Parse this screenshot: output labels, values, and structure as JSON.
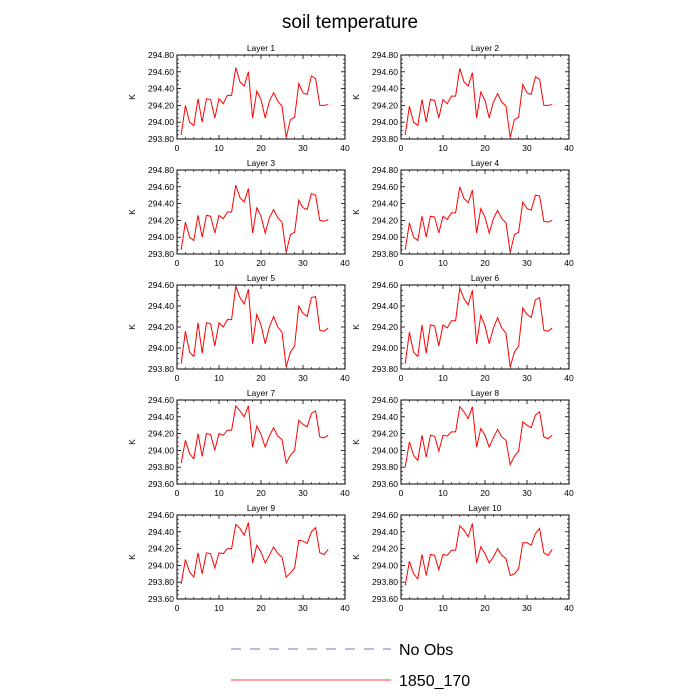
{
  "title": "soil temperature",
  "chart_data": [
    {
      "type": "line",
      "title": "Layer 1",
      "ylabel": "K",
      "xlim": [
        0,
        40
      ],
      "xticks": [
        0,
        10,
        20,
        30,
        40
      ],
      "ylim": [
        293.8,
        294.8
      ],
      "yticks": [
        293.8,
        294.0,
        294.2,
        294.4,
        294.6,
        294.8
      ],
      "ytick_labels": [
        "293.80",
        "294.00",
        "294.20",
        "294.40",
        "294.60",
        "294.80"
      ],
      "x": [
        1,
        2,
        3,
        4,
        5,
        6,
        7,
        8,
        9,
        10,
        11,
        12,
        13,
        14,
        15,
        16,
        17,
        18,
        19,
        20,
        21,
        22,
        23,
        24,
        25,
        26,
        27,
        28,
        29,
        30,
        31,
        32,
        33,
        34,
        35,
        36
      ],
      "series": [
        {
          "name": "1850_170",
          "values": [
            293.85,
            294.2,
            294.0,
            293.96,
            294.28,
            294.0,
            294.28,
            294.27,
            294.05,
            294.28,
            294.22,
            294.32,
            294.32,
            294.65,
            294.48,
            294.43,
            294.6,
            294.05,
            294.37,
            294.27,
            294.05,
            294.25,
            294.35,
            294.25,
            294.19,
            293.82,
            294.03,
            294.06,
            294.46,
            294.35,
            294.33,
            294.55,
            294.52,
            294.2,
            294.2,
            294.21
          ]
        }
      ]
    },
    {
      "type": "line",
      "title": "Layer 2",
      "ylabel": "K",
      "xlim": [
        0,
        40
      ],
      "xticks": [
        0,
        10,
        20,
        30,
        40
      ],
      "ylim": [
        293.8,
        294.8
      ],
      "yticks": [
        293.8,
        294.0,
        294.2,
        294.4,
        294.6,
        294.8
      ],
      "ytick_labels": [
        "293.80",
        "294.00",
        "294.20",
        "294.40",
        "294.60",
        "294.80"
      ],
      "x": [
        1,
        2,
        3,
        4,
        5,
        6,
        7,
        8,
        9,
        10,
        11,
        12,
        13,
        14,
        15,
        16,
        17,
        18,
        19,
        20,
        21,
        22,
        23,
        24,
        25,
        26,
        27,
        28,
        29,
        30,
        31,
        32,
        33,
        34,
        35,
        36
      ],
      "series": [
        {
          "name": "1850_170",
          "values": [
            293.85,
            294.19,
            294.0,
            293.96,
            294.27,
            294.0,
            294.27,
            294.26,
            294.05,
            294.27,
            294.22,
            294.31,
            294.31,
            294.64,
            294.48,
            294.43,
            294.59,
            294.05,
            294.36,
            294.26,
            294.05,
            294.24,
            294.34,
            294.24,
            294.19,
            293.82,
            294.03,
            294.06,
            294.45,
            294.35,
            294.33,
            294.54,
            294.51,
            294.2,
            294.2,
            294.21
          ]
        }
      ]
    },
    {
      "type": "line",
      "title": "Layer 3",
      "ylabel": "K",
      "xlim": [
        0,
        40
      ],
      "xticks": [
        0,
        10,
        20,
        30,
        40
      ],
      "ylim": [
        293.8,
        294.8
      ],
      "yticks": [
        293.8,
        294.0,
        294.2,
        294.4,
        294.6,
        294.8
      ],
      "ytick_labels": [
        "293.80",
        "294.00",
        "294.20",
        "294.40",
        "294.60",
        "294.80"
      ],
      "x": [
        1,
        2,
        3,
        4,
        5,
        6,
        7,
        8,
        9,
        10,
        11,
        12,
        13,
        14,
        15,
        16,
        17,
        18,
        19,
        20,
        21,
        22,
        23,
        24,
        25,
        26,
        27,
        28,
        29,
        30,
        31,
        32,
        33,
        34,
        35,
        36
      ],
      "series": [
        {
          "name": "1850_170",
          "values": [
            293.85,
            294.18,
            294.0,
            293.96,
            294.26,
            294.0,
            294.26,
            294.25,
            294.05,
            294.26,
            294.22,
            294.3,
            294.3,
            294.62,
            294.47,
            294.42,
            294.58,
            294.05,
            294.35,
            294.25,
            294.05,
            294.23,
            294.33,
            294.23,
            294.18,
            293.82,
            294.03,
            294.06,
            294.44,
            294.35,
            294.33,
            294.52,
            294.5,
            294.2,
            294.19,
            294.21
          ]
        }
      ]
    },
    {
      "type": "line",
      "title": "Layer 4",
      "ylabel": "K",
      "xlim": [
        0,
        40
      ],
      "xticks": [
        0,
        10,
        20,
        30,
        40
      ],
      "ylim": [
        293.8,
        294.8
      ],
      "yticks": [
        293.8,
        294.0,
        294.2,
        294.4,
        294.6,
        294.8
      ],
      "ytick_labels": [
        "293.80",
        "294.00",
        "294.20",
        "294.40",
        "294.60",
        "294.80"
      ],
      "x": [
        1,
        2,
        3,
        4,
        5,
        6,
        7,
        8,
        9,
        10,
        11,
        12,
        13,
        14,
        15,
        16,
        17,
        18,
        19,
        20,
        21,
        22,
        23,
        24,
        25,
        26,
        27,
        28,
        29,
        30,
        31,
        32,
        33,
        34,
        35,
        36
      ],
      "series": [
        {
          "name": "1850_170",
          "values": [
            293.85,
            294.17,
            294.0,
            293.96,
            294.25,
            294.0,
            294.25,
            294.24,
            294.05,
            294.25,
            294.21,
            294.29,
            294.29,
            294.6,
            294.46,
            294.41,
            294.56,
            294.05,
            294.34,
            294.24,
            294.05,
            294.22,
            294.32,
            294.22,
            294.17,
            293.82,
            294.03,
            294.06,
            294.42,
            294.34,
            294.32,
            294.5,
            294.49,
            294.19,
            294.18,
            294.2
          ]
        }
      ]
    },
    {
      "type": "line",
      "title": "Layer 5",
      "ylabel": "K",
      "xlim": [
        0,
        40
      ],
      "xticks": [
        0,
        10,
        20,
        30,
        40
      ],
      "ylim": [
        293.8,
        294.6
      ],
      "yticks": [
        293.8,
        294.0,
        294.2,
        294.4,
        294.6
      ],
      "ytick_labels": [
        "293.80",
        "294.00",
        "294.20",
        "294.40",
        "294.60"
      ],
      "x": [
        1,
        2,
        3,
        4,
        5,
        6,
        7,
        8,
        9,
        10,
        11,
        12,
        13,
        14,
        15,
        16,
        17,
        18,
        19,
        20,
        21,
        22,
        23,
        24,
        25,
        26,
        27,
        28,
        29,
        30,
        31,
        32,
        33,
        34,
        35,
        36
      ],
      "series": [
        {
          "name": "1850_170",
          "values": [
            293.85,
            294.16,
            293.96,
            293.92,
            294.24,
            293.95,
            294.24,
            294.23,
            294.02,
            294.24,
            294.2,
            294.27,
            294.27,
            294.59,
            294.48,
            294.42,
            294.56,
            294.04,
            294.32,
            294.22,
            294.04,
            294.2,
            294.3,
            294.2,
            294.15,
            293.82,
            293.96,
            294.02,
            294.4,
            294.33,
            294.3,
            294.48,
            294.49,
            294.17,
            294.16,
            294.19
          ]
        }
      ]
    },
    {
      "type": "line",
      "title": "Layer 6",
      "ylabel": "K",
      "xlim": [
        0,
        40
      ],
      "xticks": [
        0,
        10,
        20,
        30,
        40
      ],
      "ylim": [
        293.8,
        294.6
      ],
      "yticks": [
        293.8,
        294.0,
        294.2,
        294.4,
        294.6
      ],
      "ytick_labels": [
        "293.80",
        "294.00",
        "294.20",
        "294.40",
        "294.60"
      ],
      "x": [
        1,
        2,
        3,
        4,
        5,
        6,
        7,
        8,
        9,
        10,
        11,
        12,
        13,
        14,
        15,
        16,
        17,
        18,
        19,
        20,
        21,
        22,
        23,
        24,
        25,
        26,
        27,
        28,
        29,
        30,
        31,
        32,
        33,
        34,
        35,
        36
      ],
      "series": [
        {
          "name": "1850_170",
          "values": [
            293.85,
            294.15,
            293.96,
            293.92,
            294.22,
            293.95,
            294.22,
            294.21,
            294.02,
            294.22,
            294.19,
            294.26,
            294.26,
            294.57,
            294.47,
            294.41,
            294.55,
            294.04,
            294.31,
            294.21,
            294.04,
            294.19,
            294.29,
            294.19,
            294.14,
            293.82,
            293.96,
            294.02,
            294.38,
            294.32,
            294.29,
            294.46,
            294.48,
            294.17,
            294.16,
            294.19
          ]
        }
      ]
    },
    {
      "type": "line",
      "title": "Layer 7",
      "ylabel": "K",
      "xlim": [
        0,
        40
      ],
      "xticks": [
        0,
        10,
        20,
        30,
        40
      ],
      "ylim": [
        293.6,
        294.6
      ],
      "yticks": [
        293.6,
        293.8,
        294.0,
        294.2,
        294.4,
        294.6
      ],
      "ytick_labels": [
        "293.60",
        "293.80",
        "294.00",
        "294.20",
        "294.40",
        "294.60"
      ],
      "x": [
        1,
        2,
        3,
        4,
        5,
        6,
        7,
        8,
        9,
        10,
        11,
        12,
        13,
        14,
        15,
        16,
        17,
        18,
        19,
        20,
        21,
        22,
        23,
        24,
        25,
        26,
        27,
        28,
        29,
        30,
        31,
        32,
        33,
        34,
        35,
        36
      ],
      "series": [
        {
          "name": "1850_170",
          "values": [
            293.85,
            294.12,
            293.96,
            293.9,
            294.2,
            293.93,
            294.2,
            294.19,
            294.0,
            294.2,
            294.18,
            294.24,
            294.24,
            294.53,
            294.47,
            294.4,
            294.53,
            294.04,
            294.29,
            294.19,
            294.04,
            294.17,
            294.27,
            294.17,
            294.13,
            293.85,
            293.94,
            294.0,
            294.36,
            294.31,
            294.28,
            294.44,
            294.47,
            294.16,
            294.15,
            294.18
          ]
        }
      ]
    },
    {
      "type": "line",
      "title": "Layer 8",
      "ylabel": "K",
      "xlim": [
        0,
        40
      ],
      "xticks": [
        0,
        10,
        20,
        30,
        40
      ],
      "ylim": [
        293.6,
        294.6
      ],
      "yticks": [
        293.6,
        293.8,
        294.0,
        294.2,
        294.4,
        294.6
      ],
      "ytick_labels": [
        "293.60",
        "293.80",
        "294.00",
        "294.20",
        "294.40",
        "294.60"
      ],
      "x": [
        1,
        2,
        3,
        4,
        5,
        6,
        7,
        8,
        9,
        10,
        11,
        12,
        13,
        14,
        15,
        16,
        17,
        18,
        19,
        20,
        21,
        22,
        23,
        24,
        25,
        26,
        27,
        28,
        29,
        30,
        31,
        32,
        33,
        34,
        35,
        36
      ],
      "series": [
        {
          "name": "1850_170",
          "values": [
            293.8,
            294.1,
            293.94,
            293.88,
            294.18,
            293.92,
            294.18,
            294.17,
            293.99,
            294.18,
            294.17,
            294.22,
            294.22,
            294.52,
            294.46,
            294.38,
            294.52,
            294.04,
            294.26,
            294.18,
            294.04,
            294.15,
            294.25,
            294.16,
            294.12,
            293.83,
            293.93,
            293.99,
            294.34,
            294.3,
            294.27,
            294.42,
            294.46,
            294.16,
            294.14,
            294.18
          ]
        }
      ]
    },
    {
      "type": "line",
      "title": "Layer 9",
      "ylabel": "K",
      "xlim": [
        0,
        40
      ],
      "xticks": [
        0,
        10,
        20,
        30,
        40
      ],
      "ylim": [
        293.6,
        294.6
      ],
      "yticks": [
        293.6,
        293.8,
        294.0,
        294.2,
        294.4,
        294.6
      ],
      "ytick_labels": [
        "293.60",
        "293.80",
        "294.00",
        "294.20",
        "294.40",
        "294.60"
      ],
      "x": [
        1,
        2,
        3,
        4,
        5,
        6,
        7,
        8,
        9,
        10,
        11,
        12,
        13,
        14,
        15,
        16,
        17,
        18,
        19,
        20,
        21,
        22,
        23,
        24,
        25,
        26,
        27,
        28,
        29,
        30,
        31,
        32,
        33,
        34,
        35,
        36
      ],
      "series": [
        {
          "name": "1850_170",
          "values": [
            293.78,
            294.07,
            293.92,
            293.86,
            294.15,
            293.9,
            294.15,
            294.14,
            293.97,
            294.15,
            294.14,
            294.2,
            294.2,
            294.49,
            294.44,
            294.36,
            294.51,
            294.03,
            294.24,
            294.16,
            294.03,
            294.12,
            294.22,
            294.14,
            294.1,
            293.86,
            293.91,
            293.97,
            294.3,
            294.29,
            294.26,
            294.4,
            294.45,
            294.15,
            294.13,
            294.19
          ]
        }
      ]
    },
    {
      "type": "line",
      "title": "Layer 10",
      "ylabel": "K",
      "xlim": [
        0,
        40
      ],
      "xticks": [
        0,
        10,
        20,
        30,
        40
      ],
      "ylim": [
        293.6,
        294.6
      ],
      "yticks": [
        293.6,
        293.8,
        294.0,
        294.2,
        294.4,
        294.6
      ],
      "ytick_labels": [
        "293.60",
        "293.80",
        "294.00",
        "294.20",
        "294.40",
        "294.60"
      ],
      "x": [
        1,
        2,
        3,
        4,
        5,
        6,
        7,
        8,
        9,
        10,
        11,
        12,
        13,
        14,
        15,
        16,
        17,
        18,
        19,
        20,
        21,
        22,
        23,
        24,
        25,
        26,
        27,
        28,
        29,
        30,
        31,
        32,
        33,
        34,
        35,
        36
      ],
      "series": [
        {
          "name": "1850_170",
          "values": [
            293.76,
            294.05,
            293.9,
            293.84,
            294.13,
            293.88,
            294.13,
            294.12,
            293.95,
            294.13,
            294.12,
            294.18,
            294.18,
            294.47,
            294.42,
            294.34,
            294.5,
            294.03,
            294.22,
            294.14,
            294.03,
            294.1,
            294.2,
            294.12,
            294.08,
            293.88,
            293.9,
            293.96,
            294.27,
            294.27,
            294.24,
            294.38,
            294.44,
            294.15,
            294.12,
            294.19
          ]
        }
      ]
    }
  ],
  "legend": [
    {
      "label": "No Obs",
      "color": "#4a4ab8",
      "style": "dashed"
    },
    {
      "label": "1850_170",
      "color": "#ff0000",
      "style": "solid"
    }
  ],
  "line_color": "#ff0000"
}
